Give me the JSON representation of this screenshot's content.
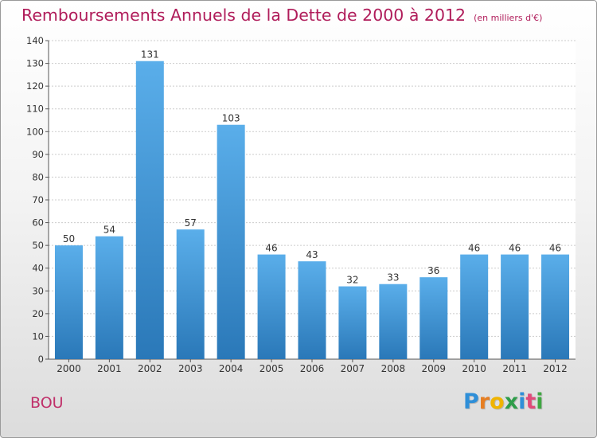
{
  "title": "Remboursements Annuels de la Dette de 2000 à 2012",
  "subtitle": "(en milliers d'€)",
  "commune": "BOU",
  "logo": {
    "letters": [
      "P",
      "r",
      "o",
      "x",
      "i",
      "t",
      "i"
    ],
    "colors": [
      "#2f8fd8",
      "#e67e22",
      "#f0b400",
      "#2e9d4a",
      "#2f8fd8",
      "#e04b7a",
      "#3fa742"
    ]
  },
  "colors": {
    "bar_light": "#5aaeea",
    "bar_dark": "#2a78b8",
    "title": "#b01c5a",
    "grid": "#cccccc"
  },
  "chart_data": {
    "type": "bar",
    "title": "Remboursements Annuels de la Dette de 2000 à 2012",
    "subtitle": "(en milliers d'€)",
    "categories": [
      "2000",
      "2001",
      "2002",
      "2003",
      "2004",
      "2005",
      "2006",
      "2007",
      "2008",
      "2009",
      "2010",
      "2011",
      "2012"
    ],
    "values": [
      50,
      54,
      131,
      57,
      103,
      46,
      43,
      32,
      33,
      36,
      46,
      46,
      46
    ],
    "xlabel": "",
    "ylabel": "",
    "ylim": [
      0,
      140
    ],
    "yticks": [
      0,
      10,
      20,
      30,
      40,
      50,
      60,
      70,
      80,
      90,
      100,
      110,
      120,
      130,
      140
    ],
    "grid": true,
    "data_labels": true
  }
}
